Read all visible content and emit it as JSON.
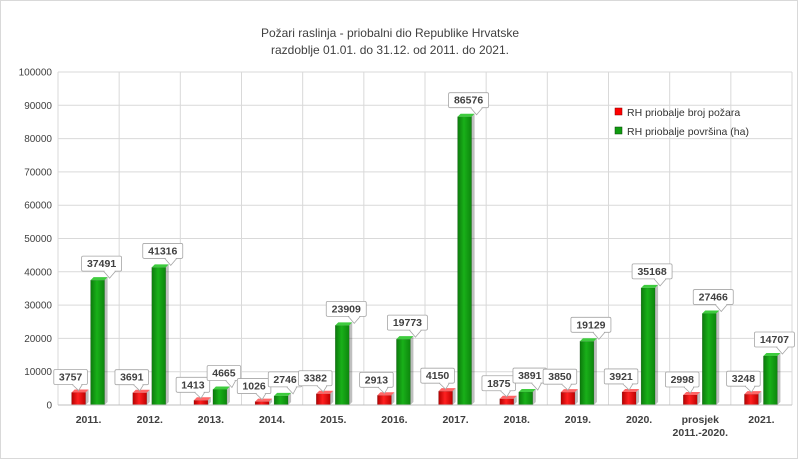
{
  "chart_data": {
    "type": "bar",
    "title": "Požari raslinja - priobalni dio Republike Hrvatske",
    "subtitle": "razdoblje 01.01. do 31.12. od 2011. do 2021.",
    "categories": [
      [
        "2011."
      ],
      [
        "2012."
      ],
      [
        "2013."
      ],
      [
        "2014."
      ],
      [
        "2015."
      ],
      [
        "2016."
      ],
      [
        "2017."
      ],
      [
        "2018."
      ],
      [
        "2019."
      ],
      [
        "2020."
      ],
      [
        "prosjek",
        "2011.-2020."
      ],
      [
        "2021."
      ]
    ],
    "series": [
      {
        "name": "RH priobalje broj požara",
        "color": "#ff0000",
        "values": [
          3757,
          3691,
          1413,
          1026,
          3382,
          2913,
          4150,
          1875,
          3850,
          3921,
          2998,
          3248
        ]
      },
      {
        "name": "RH priobalje površina (ha)",
        "color": "#109c10",
        "values": [
          37491,
          41316,
          4665,
          2746,
          23909,
          19773,
          86576,
          3891,
          19129,
          35168,
          27466,
          14707
        ]
      }
    ],
    "ylim": [
      0,
      100000
    ],
    "yticks": [
      0,
      10000,
      20000,
      30000,
      40000,
      50000,
      60000,
      70000,
      80000,
      90000,
      100000
    ],
    "grid": true,
    "legend_position": "top-right"
  }
}
